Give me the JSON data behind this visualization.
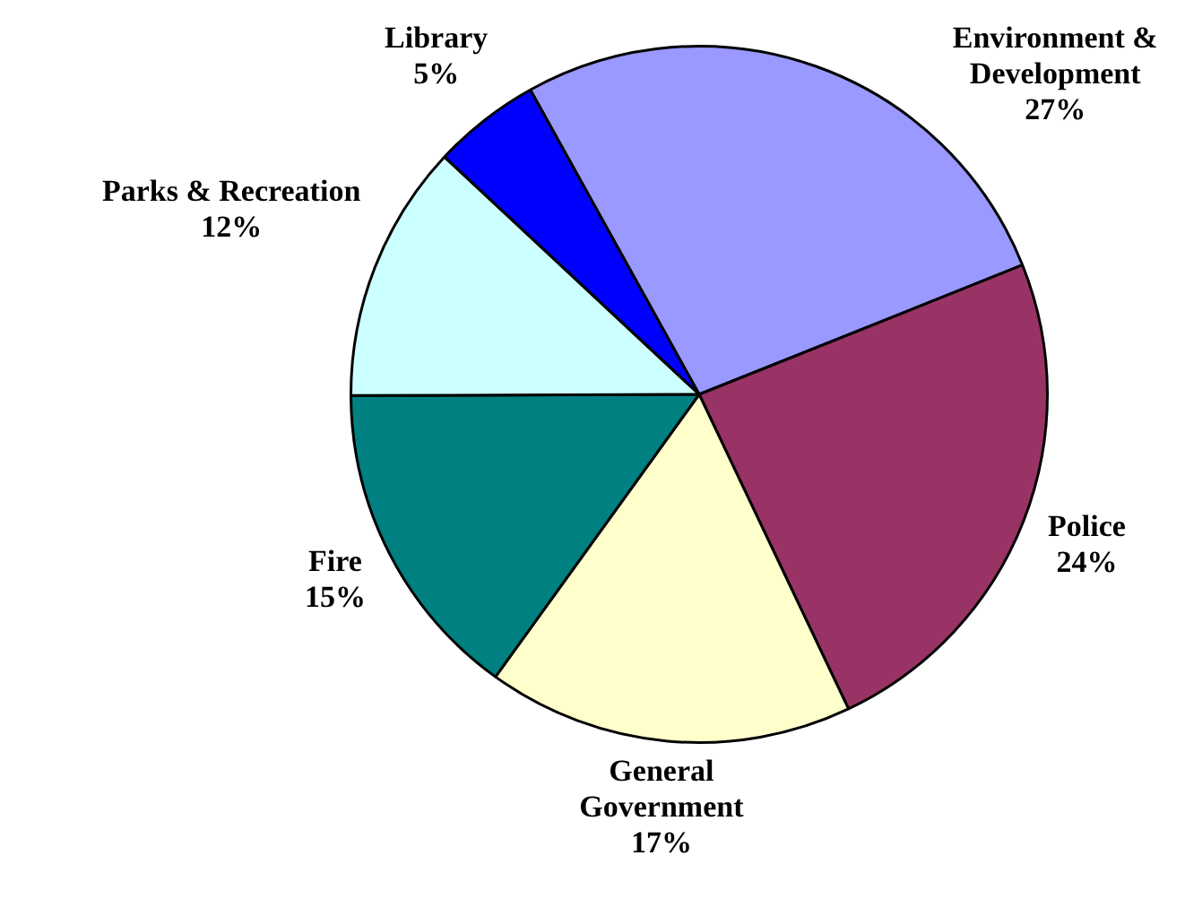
{
  "chart_data": {
    "type": "pie",
    "categories": [
      "Environment & Development",
      "Police",
      "General Government",
      "Fire",
      "Parks & Recreation",
      "Library"
    ],
    "values": [
      27,
      24,
      17,
      15,
      12,
      5
    ],
    "colors": [
      "#9999ff",
      "#993366",
      "#ffffcc",
      "#008080",
      "#ccffff",
      "#0000ff"
    ],
    "value_labels": [
      "27%",
      "24%",
      "17%",
      "15%",
      "12%",
      "5%"
    ],
    "legend": false
  }
}
